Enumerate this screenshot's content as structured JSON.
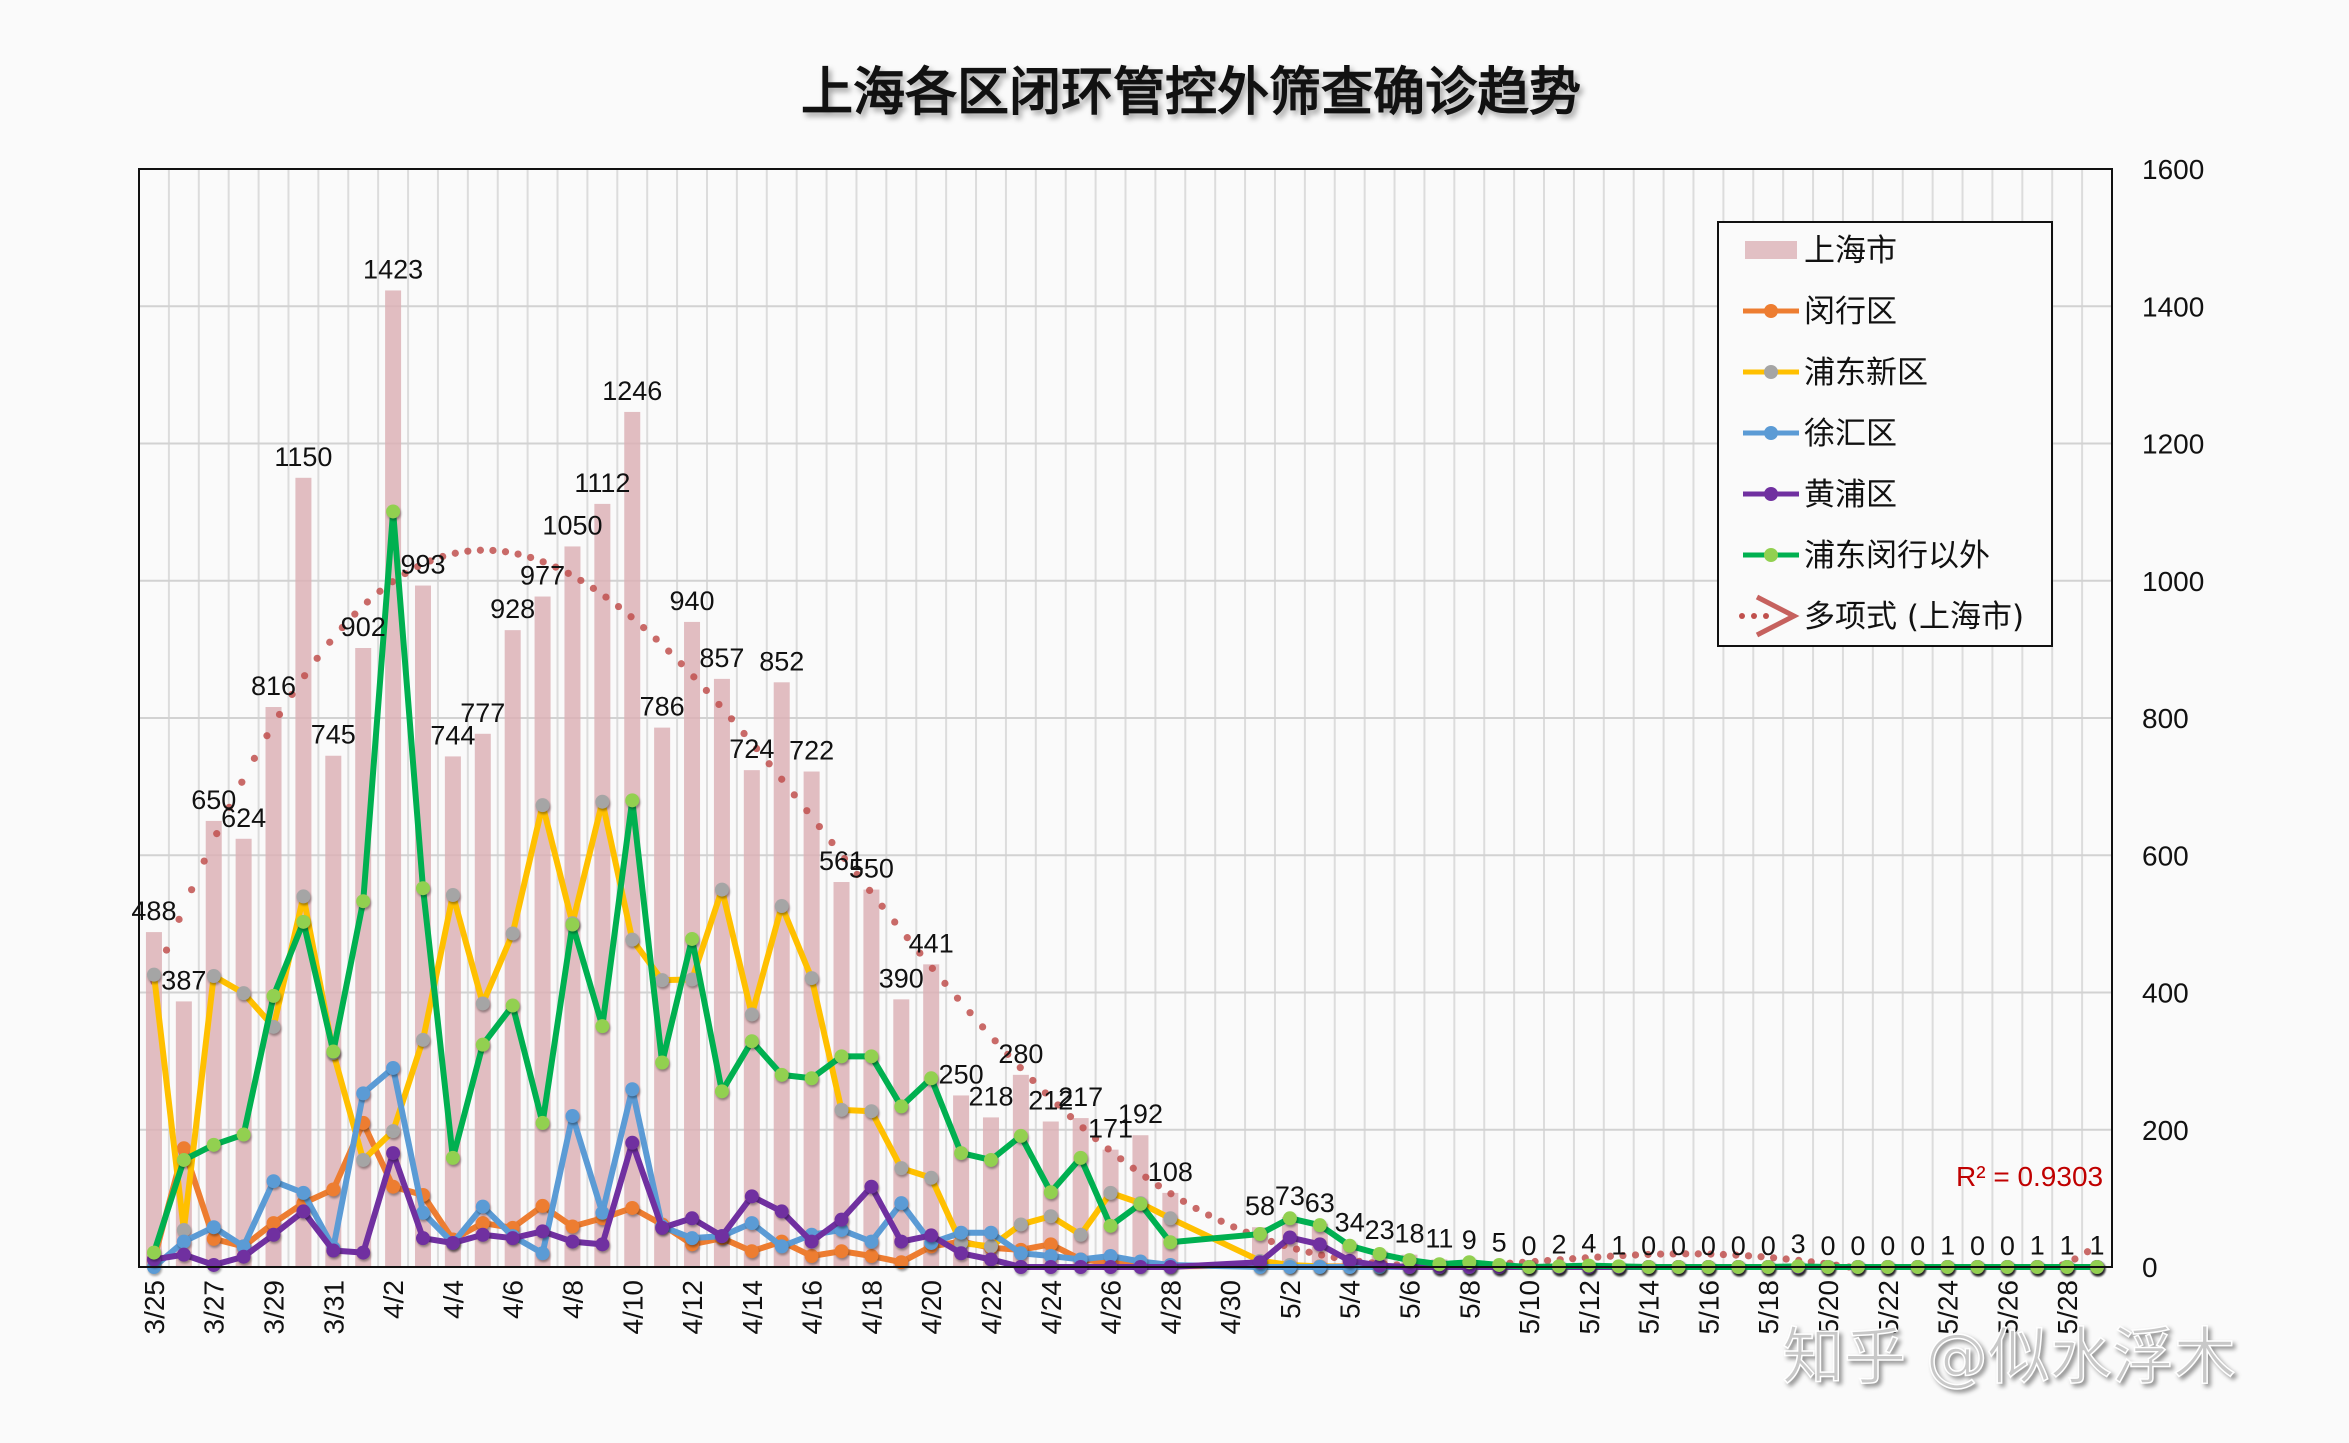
{
  "chart_data": {
    "type": "bar+line",
    "title": "上海各区闭环管控外筛查确诊趋势",
    "categories": [
      "3/25",
      "3/26",
      "3/27",
      "3/28",
      "3/29",
      "3/30",
      "3/31",
      "4/1",
      "4/2",
      "4/3",
      "4/4",
      "4/5",
      "4/6",
      "4/7",
      "4/8",
      "4/9",
      "4/10",
      "4/11",
      "4/12",
      "4/13",
      "4/14",
      "4/15",
      "4/16",
      "4/17",
      "4/18",
      "4/19",
      "4/20",
      "4/21",
      "4/22",
      "4/23",
      "4/24",
      "4/25",
      "4/26",
      "4/27",
      "4/28",
      "4/29",
      "4/30",
      "5/1",
      "5/2",
      "5/3",
      "5/4",
      "5/5",
      "5/6",
      "5/7",
      "5/8",
      "5/9",
      "5/10",
      "5/11",
      "5/12",
      "5/13",
      "5/14",
      "5/15",
      "5/16",
      "5/17",
      "5/18",
      "5/19",
      "5/20",
      "5/21",
      "5/22",
      "5/23",
      "5/24",
      "5/25",
      "5/26",
      "5/27",
      "5/28",
      "5/29"
    ],
    "x_tick_labels": [
      "3/25",
      "3/27",
      "3/29",
      "3/31",
      "4/2",
      "4/4",
      "4/6",
      "4/8",
      "4/10",
      "4/12",
      "4/14",
      "4/16",
      "4/18",
      "4/20",
      "4/22",
      "4/24",
      "4/26",
      "4/28",
      "4/30",
      "5/2",
      "5/4",
      "5/6",
      "5/8",
      "5/10",
      "5/12",
      "5/14",
      "5/16",
      "5/18",
      "5/20",
      "5/22",
      "5/24",
      "5/26",
      "5/28"
    ],
    "y_axis": {
      "position": "right",
      "ylim": [
        0,
        1600
      ],
      "ticks": [
        "0",
        "200",
        "400",
        "600",
        "800",
        "1000",
        "1200",
        "1400",
        "1600"
      ]
    },
    "grid": true,
    "legend_position": "top-right",
    "series": [
      {
        "name": "上海市",
        "kind": "bar",
        "color": "#dcb2b6",
        "data_labels": true,
        "values": [
          488,
          387,
          650,
          624,
          816,
          1150,
          745,
          902,
          1423,
          993,
          744,
          777,
          928,
          977,
          1050,
          1112,
          1246,
          786,
          940,
          857,
          724,
          852,
          722,
          561,
          550,
          390,
          441,
          250,
          218,
          280,
          212,
          217,
          171,
          192,
          108,
          null,
          null,
          58,
          73,
          63,
          34,
          23,
          18,
          11,
          9,
          5,
          0,
          2,
          4,
          1,
          0,
          0,
          0,
          0,
          0,
          3,
          0,
          0,
          0,
          0,
          1,
          0,
          0,
          1,
          1,
          1
        ]
      },
      {
        "name": "闵行区",
        "kind": "line",
        "color": "#ed7d31",
        "marker": "#ed7d31",
        "values": [
          11,
          173,
          41,
          30,
          64,
          93,
          113,
          210,
          117,
          105,
          40,
          64,
          57,
          89,
          59,
          71,
          86,
          62,
          33,
          42,
          23,
          37,
          16,
          23,
          16,
          7,
          30,
          37,
          28,
          25,
          33,
          11,
          6,
          3,
          1,
          null,
          null,
          2,
          1,
          1,
          1,
          0,
          0,
          0,
          0,
          0,
          0,
          0,
          0,
          0,
          0,
          0,
          0,
          0,
          0,
          0,
          0,
          0,
          0,
          0,
          0,
          0,
          0,
          0,
          0,
          0
        ]
      },
      {
        "name": "浦东新区",
        "kind": "line",
        "color": "#ffc000",
        "marker": "#a5a5a5",
        "values": [
          426,
          54,
          424,
          399,
          350,
          540,
          312,
          156,
          198,
          331,
          542,
          384,
          486,
          673,
          501,
          678,
          477,
          418,
          419,
          550,
          368,
          526,
          421,
          229,
          227,
          144,
          130,
          35,
          30,
          62,
          74,
          47,
          108,
          93,
          71,
          null,
          null,
          9,
          3,
          1,
          0,
          0,
          0,
          0,
          0,
          0,
          0,
          0,
          0,
          0,
          0,
          0,
          0,
          0,
          0,
          0,
          0,
          0,
          0,
          0,
          0,
          0,
          0,
          0,
          0,
          0
        ]
      },
      {
        "name": "徐汇区",
        "kind": "line",
        "color": "#5b9bd5",
        "marker": "#5b9bd5",
        "values": [
          0,
          37,
          58,
          30,
          125,
          108,
          28,
          253,
          290,
          79,
          35,
          88,
          45,
          20,
          220,
          79,
          259,
          59,
          42,
          45,
          64,
          30,
          47,
          54,
          37,
          93,
          35,
          50,
          50,
          20,
          16,
          11,
          16,
          8,
          3,
          null,
          null,
          0,
          0,
          0,
          0,
          0,
          0,
          0,
          0,
          0,
          0,
          0,
          0,
          0,
          0,
          0,
          0,
          0,
          0,
          0,
          0,
          0,
          0,
          0,
          0,
          0,
          0,
          0,
          0,
          0
        ]
      },
      {
        "name": "黄浦区",
        "kind": "line",
        "color": "#7030a0",
        "marker": "#7030a0",
        "values": [
          11,
          18,
          3,
          15,
          47,
          81,
          24,
          21,
          166,
          42,
          35,
          47,
          42,
          52,
          37,
          33,
          181,
          57,
          71,
          45,
          103,
          81,
          37,
          69,
          117,
          37,
          46,
          20,
          11,
          0,
          0,
          0,
          0,
          0,
          0,
          null,
          null,
          7,
          43,
          33,
          9,
          2,
          0,
          0,
          0,
          0,
          0,
          0,
          0,
          0,
          0,
          0,
          0,
          0,
          0,
          0,
          0,
          0,
          0,
          0,
          0,
          0,
          0,
          0,
          0,
          0
        ]
      },
      {
        "name": "浦东闵行以外",
        "kind": "line",
        "color": "#00b050",
        "marker": "#92d050",
        "values": [
          21,
          156,
          178,
          193,
          395,
          503,
          314,
          533,
          1101,
          552,
          159,
          324,
          381,
          210,
          499,
          351,
          680,
          298,
          478,
          256,
          329,
          280,
          275,
          307,
          307,
          234,
          275,
          166,
          156,
          191,
          109,
          159,
          60,
          92,
          36,
          null,
          null,
          48,
          71,
          61,
          31,
          19,
          10,
          4,
          7,
          3,
          0,
          1,
          2,
          1,
          0,
          0,
          0,
          0,
          0,
          1,
          0,
          0,
          0,
          0,
          0,
          0,
          0,
          0,
          0,
          0
        ]
      }
    ],
    "trendline": {
      "name": "多项式 (上海市)",
      "type": "polynomial",
      "of_series": "上海市",
      "color": "#c0504d",
      "style": "dotted",
      "r2_label": "R² = 0.9303"
    }
  },
  "watermark": "知乎 @似水浮木"
}
